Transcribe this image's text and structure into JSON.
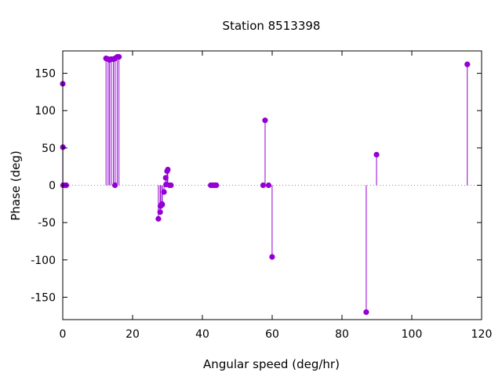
{
  "chart_data": {
    "type": "scatter",
    "style": "impulses with points",
    "title": "Station 8513398",
    "xlabel": "Angular speed (deg/hr)",
    "ylabel": "Phase (deg)",
    "xlim": [
      0,
      120
    ],
    "ylim": [
      -180,
      180
    ],
    "xticks": [
      0,
      20,
      40,
      60,
      80,
      100,
      120
    ],
    "yticks": [
      -150,
      -100,
      -50,
      0,
      50,
      100,
      150
    ],
    "zero_line": true,
    "grid": false,
    "legend": "none",
    "series_color": "#9400d3",
    "points": [
      {
        "x": 0.0,
        "y": 136
      },
      {
        "x": 0.04,
        "y": 51
      },
      {
        "x": 0.08,
        "y": 0
      },
      {
        "x": 0.5,
        "y": 0
      },
      {
        "x": 1.0,
        "y": 0
      },
      {
        "x": 12.4,
        "y": 170
      },
      {
        "x": 13.0,
        "y": 169
      },
      {
        "x": 13.4,
        "y": 168
      },
      {
        "x": 13.9,
        "y": 169
      },
      {
        "x": 14.5,
        "y": 169
      },
      {
        "x": 14.96,
        "y": 0
      },
      {
        "x": 15.0,
        "y": 170
      },
      {
        "x": 15.6,
        "y": 172
      },
      {
        "x": 16.1,
        "y": 172
      },
      {
        "x": 27.4,
        "y": -45
      },
      {
        "x": 27.9,
        "y": -36
      },
      {
        "x": 28.0,
        "y": -28
      },
      {
        "x": 28.4,
        "y": -25
      },
      {
        "x": 28.5,
        "y": -26
      },
      {
        "x": 29.0,
        "y": -9
      },
      {
        "x": 29.5,
        "y": 10
      },
      {
        "x": 29.6,
        "y": 1
      },
      {
        "x": 29.9,
        "y": 19
      },
      {
        "x": 30.1,
        "y": 21
      },
      {
        "x": 30.6,
        "y": 0
      },
      {
        "x": 31.0,
        "y": 0
      },
      {
        "x": 42.4,
        "y": 0
      },
      {
        "x": 42.9,
        "y": 0
      },
      {
        "x": 43.5,
        "y": 0
      },
      {
        "x": 44.0,
        "y": 0
      },
      {
        "x": 57.4,
        "y": 0
      },
      {
        "x": 57.97,
        "y": 87
      },
      {
        "x": 58.98,
        "y": 0
      },
      {
        "x": 59.98,
        "y": -96
      },
      {
        "x": 86.95,
        "y": -170
      },
      {
        "x": 89.9,
        "y": 41
      },
      {
        "x": 115.9,
        "y": 162
      }
    ]
  }
}
